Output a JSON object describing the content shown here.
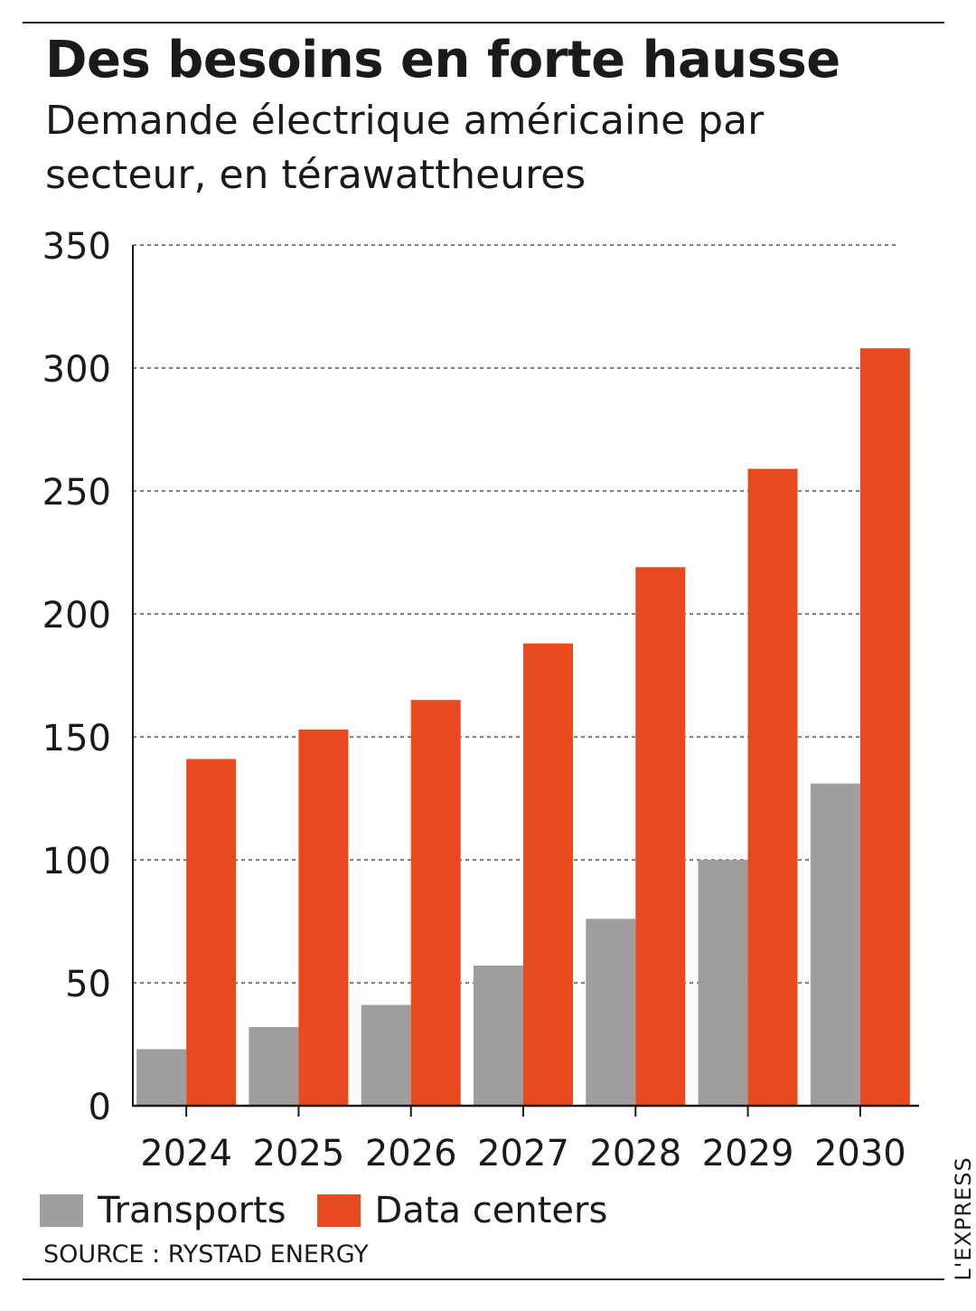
{
  "header": {
    "title": "Des besoins en forte hausse",
    "subtitle": "Demande électrique américaine par secteur, en térawattheures"
  },
  "chart_data": {
    "type": "bar",
    "categories": [
      "2024",
      "2025",
      "2026",
      "2027",
      "2028",
      "2029",
      "2030"
    ],
    "series": [
      {
        "name": "Transports",
        "color": "#9e9e9e",
        "values": [
          23,
          32,
          41,
          57,
          76,
          100,
          131
        ]
      },
      {
        "name": "Data centers",
        "color": "#e64a1e",
        "values": [
          141,
          153,
          165,
          188,
          219,
          259,
          308
        ]
      }
    ],
    "yticks": [
      0,
      50,
      100,
      150,
      200,
      250,
      300,
      350
    ],
    "ylim": [
      0,
      350
    ],
    "grid": true,
    "legend_position": "bottom-left"
  },
  "footer": {
    "source": "SOURCE : RYSTAD ENERGY",
    "brand": "L'EXPRESS"
  }
}
